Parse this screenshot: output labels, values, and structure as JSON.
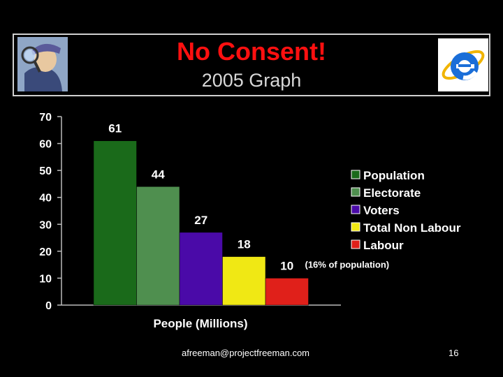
{
  "slide": {
    "title": "No Consent!",
    "subtitle": "2005 Graph",
    "footer_email": "afreeman@projectfreeman.com",
    "page_number": "16"
  },
  "chart_data": {
    "type": "bar",
    "xlabel": "People (Millions)",
    "ylabel": "",
    "ylim": [
      0,
      70
    ],
    "yticks": [
      0,
      10,
      20,
      30,
      40,
      50,
      60,
      70
    ],
    "grid": false,
    "legend_position": "right",
    "categories": [
      "Population",
      "Electorate",
      "Voters",
      "Total Non Labour",
      "Labour"
    ],
    "values": [
      61,
      44,
      27,
      18,
      10
    ],
    "colors": [
      "#1a6a1a",
      "#4f8f4f",
      "#4a0aa8",
      "#f0e814",
      "#e0201a"
    ],
    "annotation": "(16% of population)"
  }
}
